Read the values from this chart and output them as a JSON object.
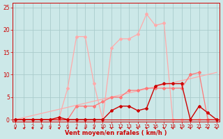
{
  "xlabel": "Vent moyen/en rafales ( km/h )",
  "bg_color": "#cce8e8",
  "grid_color": "#aacccc",
  "y_ticks": [
    0,
    5,
    10,
    15,
    20,
    25
  ],
  "ylim": [
    -0.5,
    26
  ],
  "xlim": [
    -0.3,
    23.3
  ],
  "line_rafales_x": [
    0,
    1,
    2,
    3,
    4,
    5,
    6,
    7,
    8,
    9,
    10,
    11,
    12,
    13,
    14,
    15,
    16,
    17,
    18,
    19,
    20,
    21,
    22,
    23
  ],
  "line_rafales_y": [
    0,
    0,
    0,
    0,
    0,
    0.3,
    7,
    18.5,
    18.5,
    8,
    0,
    16,
    18,
    18,
    19,
    23.5,
    21,
    21.5,
    0,
    0,
    0,
    0,
    0,
    0
  ],
  "line_rafales_color": "#ffaaaa",
  "line_moyen_x": [
    0,
    1,
    2,
    3,
    4,
    5,
    6,
    7,
    8,
    9,
    10,
    11,
    12,
    13,
    14,
    15,
    16,
    17,
    18,
    19,
    20,
    21,
    22,
    23
  ],
  "line_moyen_y": [
    0,
    0,
    0,
    0,
    0,
    0.5,
    0,
    0,
    0,
    0,
    0,
    2,
    3,
    3,
    2,
    2.5,
    7.5,
    8,
    8,
    8,
    0,
    3,
    1.5,
    0
  ],
  "line_moyen_color": "#cc0000",
  "line_trend_x": [
    0,
    23
  ],
  "line_trend_y": [
    0,
    10.5
  ],
  "line_trend_color": "#ffaaaa",
  "line_extra_x": [
    0,
    1,
    2,
    3,
    4,
    5,
    6,
    7,
    8,
    9,
    10,
    11,
    12,
    13,
    14,
    15,
    16,
    17,
    18,
    19,
    20,
    21,
    22,
    23
  ],
  "line_extra_y": [
    0,
    0,
    0,
    0,
    0,
    0,
    0,
    3,
    3,
    3,
    4,
    5,
    5,
    6.5,
    6.5,
    7,
    7,
    7,
    7,
    7,
    10,
    10.5,
    0,
    0
  ],
  "line_extra_color": "#ff7777",
  "xlabel_color": "#cc0000",
  "tick_color": "#cc0000",
  "marker_size": 2.5
}
